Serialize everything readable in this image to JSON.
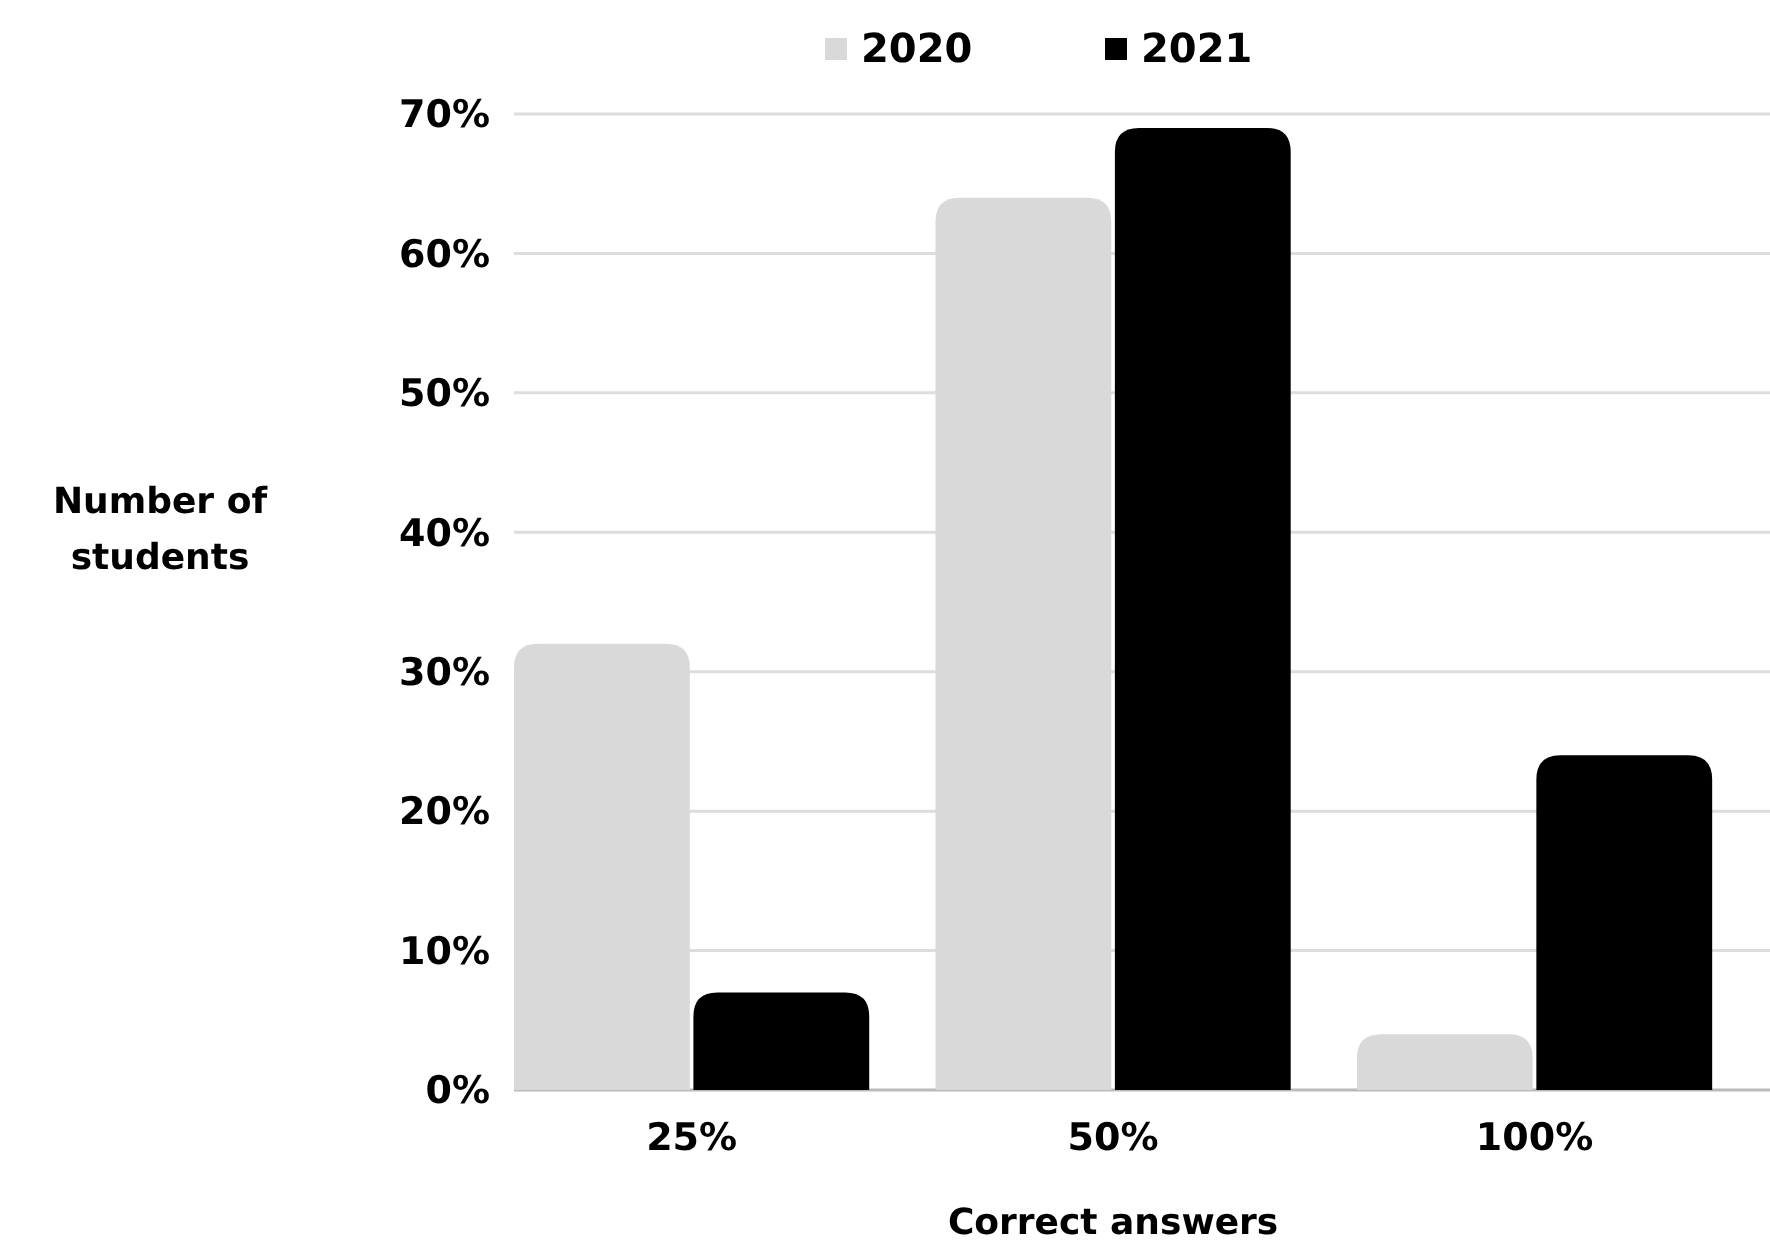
{
  "chart_data": {
    "type": "bar",
    "xlabel": "Correct answers",
    "ylabel": "Number of students",
    "categories": [
      "25%",
      "50%",
      "100%"
    ],
    "series": [
      {
        "name": "2020",
        "color": "#d9d9d9",
        "values": [
          32,
          64,
          4
        ]
      },
      {
        "name": "2021",
        "color": "#000000",
        "values": [
          7,
          69,
          24
        ]
      }
    ],
    "ylim": [
      0,
      70
    ],
    "yticks": [
      {
        "value": 0,
        "label": "0%"
      },
      {
        "value": 10,
        "label": "10%"
      },
      {
        "value": 20,
        "label": "20%"
      },
      {
        "value": 30,
        "label": "30%"
      },
      {
        "value": 40,
        "label": "40%"
      },
      {
        "value": 50,
        "label": "50%"
      },
      {
        "value": 60,
        "label": "60%"
      },
      {
        "value": 70,
        "label": "70%"
      }
    ],
    "grid": "y",
    "legend": "top"
  }
}
